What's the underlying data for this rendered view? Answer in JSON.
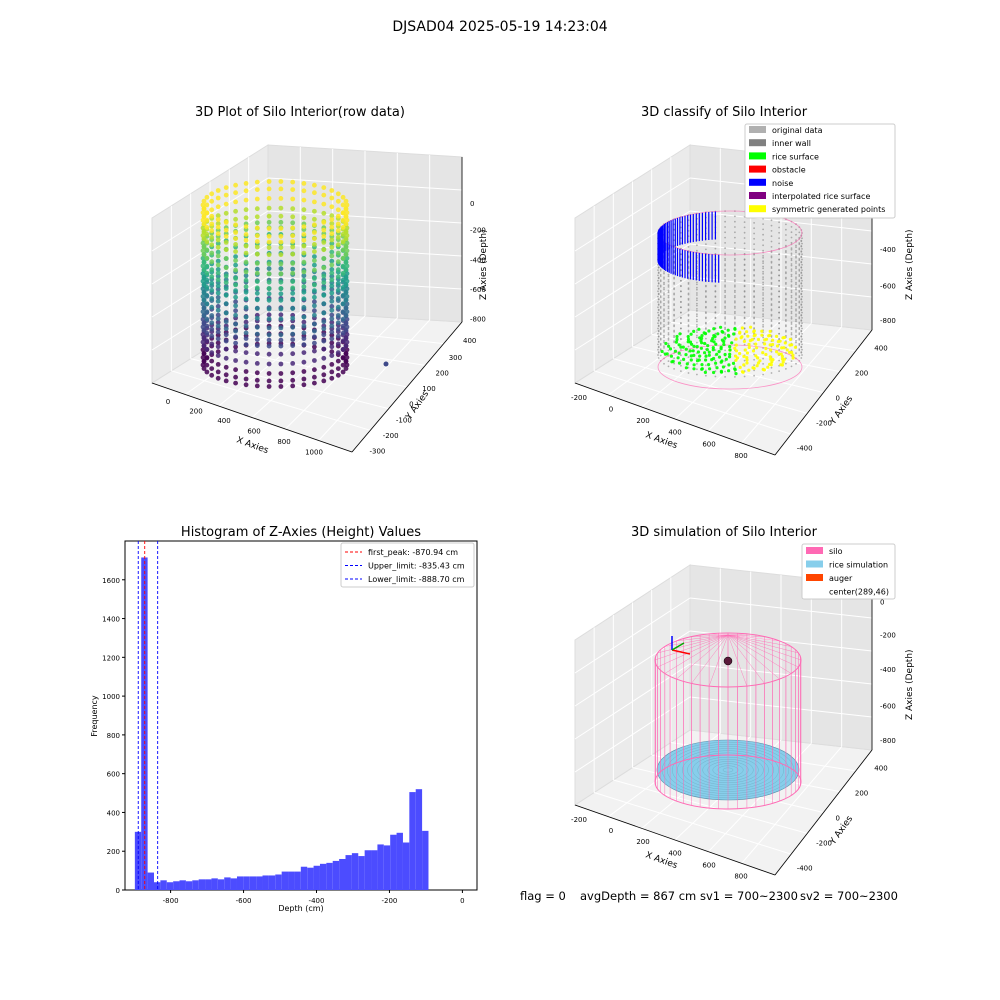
{
  "figure": {
    "suptitle": "DJSAD04 2025-05-19 14:23:04",
    "footer": {
      "flag": "flag = 0",
      "avg_depth": "avgDepth = 867 cm",
      "sv1": "sv1 = 700~2300",
      "sv2": "sv2 = 700~2300"
    }
  },
  "colors": {
    "hist_bar": "#4c4cff",
    "peak_line": "#ff0000",
    "limit_line": "#0000ff",
    "pane_gray": "#f2f2f2",
    "silo_pink": "#ff69b4",
    "rice_blue": "#87ceeb",
    "auger_orange": "#ff4500",
    "legend_gray": "#b0b0b0",
    "legend_darkgray": "#808080",
    "legend_green": "#00ff00",
    "legend_red": "#ff0000",
    "legend_blue": "#0000ff",
    "legend_purple": "#800080",
    "legend_yellow": "#ffff00"
  },
  "chart_data": [
    {
      "type": "scatter",
      "title": "3D Plot of Silo Interior(row data)",
      "xlabel": "X Axies",
      "ylabel": "Y Axies",
      "zlabel": "Z Axies (Depth)",
      "x_ticks": [
        "0",
        "200",
        "400",
        "600",
        "800",
        "1000"
      ],
      "y_ticks": [
        "-300",
        "-200",
        "-100",
        "0",
        "100",
        "200",
        "300",
        "400"
      ],
      "z_ticks": [
        "0",
        "-200",
        "-400",
        "-600",
        "-800"
      ],
      "colormap": "viridis"
    },
    {
      "type": "scatter",
      "title": "3D classify of Silo Interior",
      "xlabel": "X Axies",
      "ylabel": "Y Axies",
      "zlabel": "Z Axies (Depth)",
      "x_ticks": [
        "-200",
        "0",
        "200",
        "400",
        "600",
        "800"
      ],
      "y_ticks": [
        "-400",
        "-200",
        "0",
        "200",
        "400"
      ],
      "z_ticks": [
        "0",
        "-200",
        "-400",
        "-600",
        "-800"
      ],
      "legend": [
        {
          "label": "original data",
          "color": "#b0b0b0"
        },
        {
          "label": "inner wall",
          "color": "#808080"
        },
        {
          "label": "rice surface",
          "color": "#00ff00"
        },
        {
          "label": "obstacle",
          "color": "#ff0000"
        },
        {
          "label": "noise",
          "color": "#0000ff"
        },
        {
          "label": "interpolated rice surface",
          "color": "#800080"
        },
        {
          "label": "symmetric generated points",
          "color": "#ffff00"
        }
      ]
    },
    {
      "type": "bar",
      "title": "Histogram of Z-Axies (Height) Values",
      "xlabel": "Depth (cm)",
      "ylabel": "Frequency",
      "xlim": [
        -925,
        40
      ],
      "ylim": [
        0,
        1800
      ],
      "x_ticks": [
        "-800",
        "-600",
        "-400",
        "-200",
        "0"
      ],
      "x_tick_values": [
        -800,
        -600,
        -400,
        -200,
        0
      ],
      "y_ticks": [
        "0",
        "200",
        "400",
        "600",
        "800",
        "1000",
        "1200",
        "1400",
        "1600"
      ],
      "y_tick_values": [
        0,
        200,
        400,
        600,
        800,
        1000,
        1200,
        1400,
        1600
      ],
      "bin_start": -898,
      "bin_width": 17.5,
      "values": [
        300,
        1715,
        90,
        40,
        50,
        40,
        45,
        50,
        45,
        50,
        55,
        55,
        60,
        55,
        65,
        60,
        70,
        70,
        70,
        70,
        75,
        75,
        80,
        95,
        95,
        95,
        120,
        115,
        125,
        135,
        140,
        150,
        160,
        180,
        190,
        175,
        205,
        205,
        235,
        230,
        285,
        295,
        245,
        505,
        520,
        305
      ],
      "vlines": [
        {
          "label": "first_peak: -870.94 cm",
          "value": -870.94,
          "style": "red-dashed"
        },
        {
          "label": "Upper_limit: -835.43 cm",
          "value": -835.43,
          "style": "blue-dashed"
        },
        {
          "label": "Lower_limit: -888.70 cm",
          "value": -888.7,
          "style": "blue-dashed"
        }
      ]
    },
    {
      "type": "scatter",
      "title": "3D simulation of Silo Interior",
      "xlabel": "X Axies",
      "ylabel": "Y Axies",
      "zlabel": "Z Axies (Depth)",
      "x_ticks": [
        "-200",
        "0",
        "200",
        "400",
        "600",
        "800"
      ],
      "y_ticks": [
        "-400",
        "-200",
        "0",
        "200",
        "400"
      ],
      "z_ticks": [
        "0",
        "-200",
        "-400",
        "-600",
        "-800"
      ],
      "legend": [
        {
          "label": "silo",
          "color": "#ff69b4"
        },
        {
          "label": "rice simulation",
          "color": "#87ceeb"
        },
        {
          "label": "auger",
          "color": "#ff4500"
        },
        {
          "label": "center(289,46)",
          "color": ""
        }
      ]
    }
  ]
}
